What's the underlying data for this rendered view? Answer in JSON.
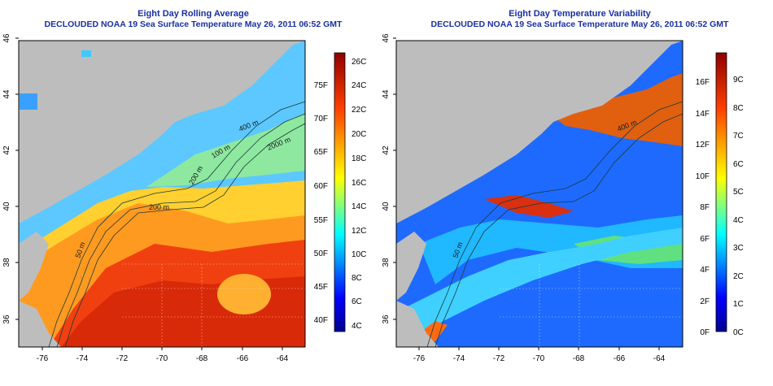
{
  "left": {
    "title_line1": "Eight Day Rolling Average",
    "title_line2": "DECLOUDED NOAA 19 Sea Surface Temperature May 26, 2011 06:52 GMT",
    "x_ticks": [
      "-76",
      "-74",
      "-72",
      "-70",
      "-68",
      "-66",
      "-64"
    ],
    "y_ticks": [
      "36",
      "38",
      "40",
      "42",
      "44",
      "46"
    ],
    "contour_labels": [
      "400 m",
      "2000 m",
      "100 m",
      "200 m",
      "200 m",
      "50 m"
    ],
    "colorbar": {
      "celsius": [
        "4C",
        "6C",
        "8C",
        "10C",
        "12C",
        "14C",
        "16C",
        "18C",
        "20C",
        "22C",
        "24C",
        "26C"
      ],
      "fahrenheit": [
        "40F",
        "45F",
        "50F",
        "55F",
        "60F",
        "65F",
        "70F",
        "75F"
      ]
    }
  },
  "right": {
    "title_line1": "Eight Day Temperature Variability",
    "title_line2": "DECLOUDED NOAA 19 Sea Surface Temperature May 26, 2011 06:52 GMT",
    "x_ticks": [
      "-76",
      "-74",
      "-72",
      "-70",
      "-68",
      "-66",
      "-64"
    ],
    "y_ticks": [
      "36",
      "38",
      "40",
      "42",
      "44",
      "46"
    ],
    "contour_labels": [
      "400 m",
      "50 m"
    ],
    "colorbar": {
      "celsius": [
        "0C",
        "1C",
        "2C",
        "3C",
        "4C",
        "5C",
        "6C",
        "7C",
        "8C",
        "9C"
      ],
      "fahrenheit": [
        "0F",
        "2F",
        "4F",
        "6F",
        "8F",
        "10F",
        "12F",
        "14F",
        "16F"
      ]
    }
  },
  "colors": {
    "land": "#bdbdbd",
    "title": "#1a2fa0",
    "colormap": [
      "#00008f",
      "#0000ff",
      "#0080ff",
      "#00ffff",
      "#80ff80",
      "#ffff00",
      "#ff8000",
      "#ff0000",
      "#800000"
    ]
  }
}
